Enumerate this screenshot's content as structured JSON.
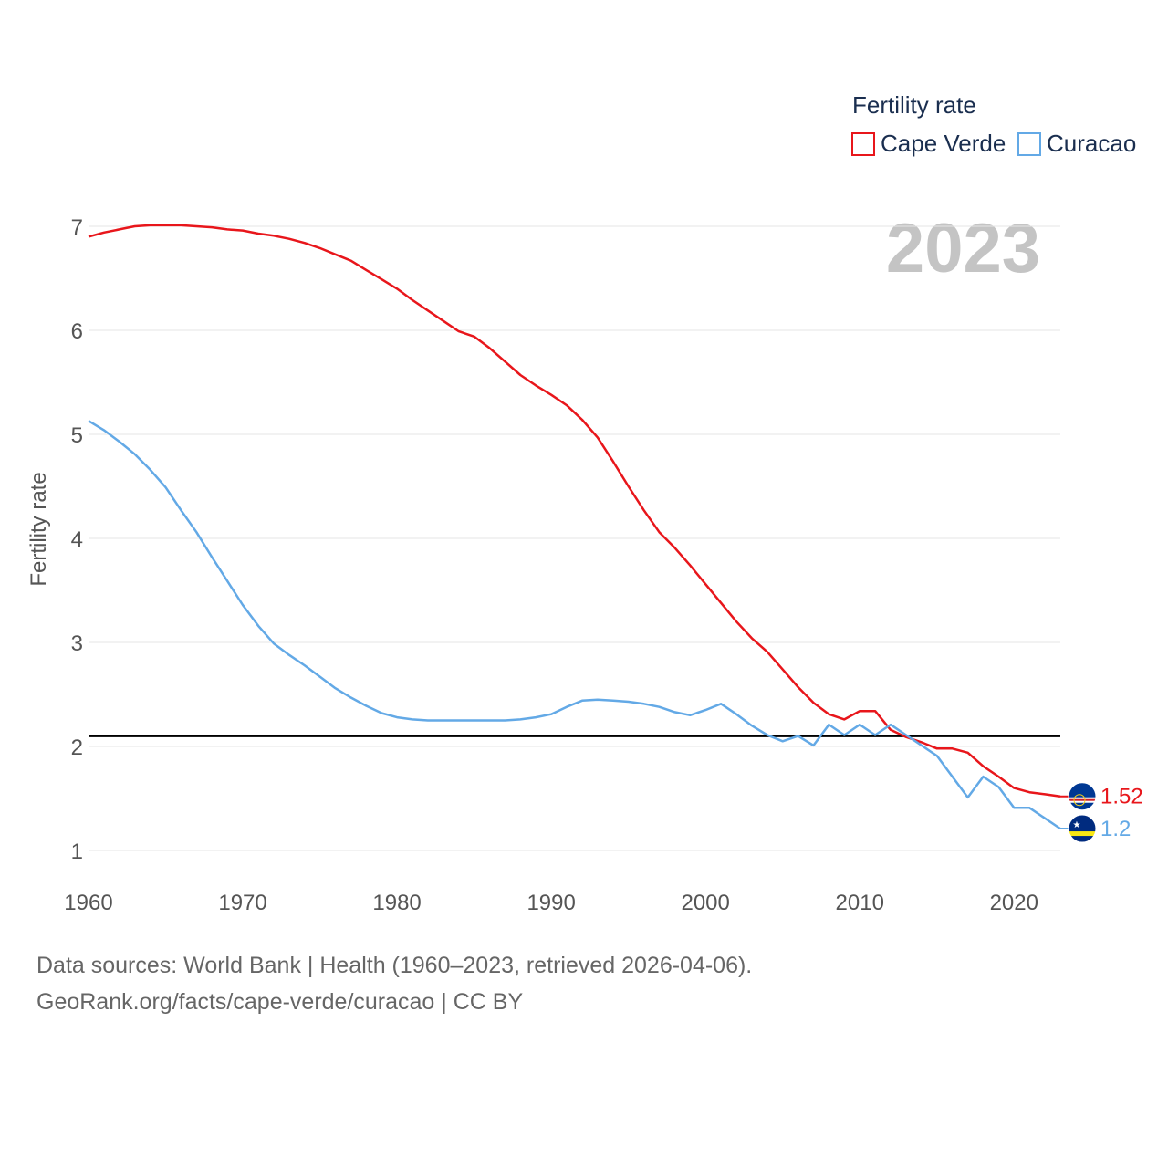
{
  "chart_data": {
    "type": "line",
    "title": "Fertility rate",
    "year_label": "2023",
    "ylabel": "Fertility rate",
    "xlabel": "",
    "xlim": [
      1960,
      2023
    ],
    "ylim": [
      1,
      7
    ],
    "x_ticks": [
      "1960",
      "1970",
      "1980",
      "1990",
      "2000",
      "2010",
      "2020"
    ],
    "y_ticks": [
      "1",
      "2",
      "3",
      "4",
      "5",
      "6",
      "7"
    ],
    "reference_line": 2.1,
    "grid": "horizontal",
    "legend_position": "top-right",
    "x": [
      1960,
      1961,
      1962,
      1963,
      1964,
      1965,
      1966,
      1967,
      1968,
      1969,
      1970,
      1971,
      1972,
      1973,
      1974,
      1975,
      1976,
      1977,
      1978,
      1979,
      1980,
      1981,
      1982,
      1983,
      1984,
      1985,
      1986,
      1987,
      1988,
      1989,
      1990,
      1991,
      1992,
      1993,
      1994,
      1995,
      1996,
      1997,
      1998,
      1999,
      2000,
      2001,
      2002,
      2003,
      2004,
      2005,
      2006,
      2007,
      2008,
      2009,
      2010,
      2011,
      2012,
      2013,
      2014,
      2015,
      2016,
      2017,
      2018,
      2019,
      2020,
      2021,
      2022,
      2023
    ],
    "series": [
      {
        "name": "Cape Verde",
        "color": "#e8161b",
        "end_label": "1.52",
        "flag_icon": "cape-verde-flag-icon",
        "values": [
          6.9,
          6.94,
          6.97,
          7.0,
          7.01,
          7.01,
          7.01,
          7.0,
          6.99,
          6.97,
          6.96,
          6.93,
          6.91,
          6.88,
          6.84,
          6.79,
          6.73,
          6.67,
          6.58,
          6.49,
          6.4,
          6.29,
          6.19,
          6.09,
          5.99,
          5.94,
          5.83,
          5.7,
          5.57,
          5.47,
          5.38,
          5.28,
          5.14,
          4.97,
          4.74,
          4.5,
          4.27,
          4.06,
          3.91,
          3.74,
          3.56,
          3.38,
          3.2,
          3.04,
          2.91,
          2.74,
          2.57,
          2.42,
          2.31,
          2.26,
          2.34,
          2.34,
          2.16,
          2.09,
          2.04,
          1.98,
          1.98,
          1.94,
          1.81,
          1.71,
          1.6,
          1.56,
          1.54,
          1.52
        ]
      },
      {
        "name": "Curacao",
        "color": "#63a9e6",
        "end_label": "1.2",
        "flag_icon": "curacao-flag-icon",
        "values": [
          5.13,
          5.04,
          4.93,
          4.81,
          4.66,
          4.49,
          4.27,
          4.06,
          3.82,
          3.59,
          3.36,
          3.16,
          2.99,
          2.88,
          2.78,
          2.67,
          2.56,
          2.47,
          2.39,
          2.32,
          2.28,
          2.26,
          2.25,
          2.25,
          2.25,
          2.25,
          2.25,
          2.25,
          2.26,
          2.28,
          2.31,
          2.38,
          2.44,
          2.45,
          2.44,
          2.43,
          2.41,
          2.38,
          2.33,
          2.3,
          2.35,
          2.41,
          2.31,
          2.2,
          2.11,
          2.05,
          2.1,
          2.01,
          2.21,
          2.11,
          2.21,
          2.11,
          2.21,
          2.11,
          2.01,
          1.91,
          1.71,
          1.51,
          1.71,
          1.61,
          1.41,
          1.41,
          1.31,
          1.21
        ]
      }
    ]
  },
  "footer": {
    "line1": "Data sources: World Bank | Health (1960–2023, retrieved 2026-04-06).",
    "line2": "GeoRank.org/facts/cape-verde/curacao | CC BY"
  }
}
